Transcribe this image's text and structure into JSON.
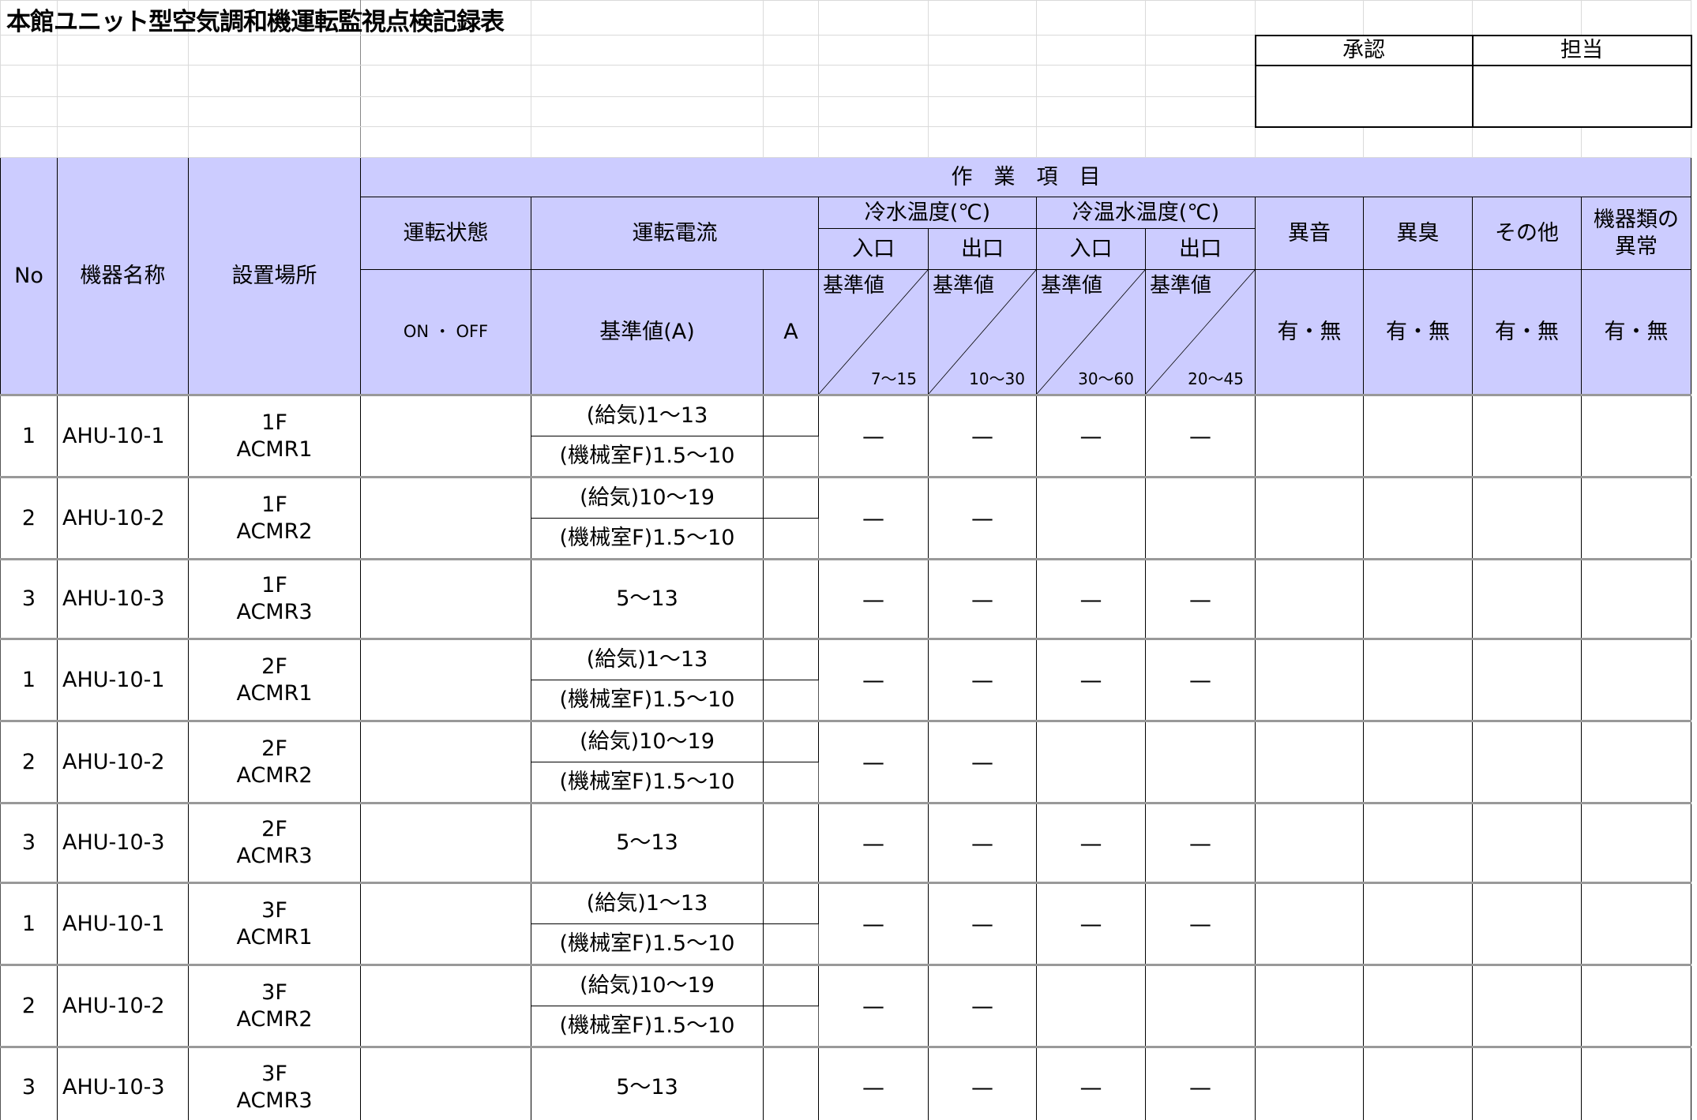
{
  "title": "本館ユニット型空気調和機運転監視点検記録表",
  "approval": {
    "approve_label": "承認",
    "charge_label": "担当"
  },
  "header": {
    "no": "No",
    "name": "機器名称",
    "location": "設置場所",
    "work_items": "作　業　項　目",
    "run_state": "運転状態",
    "run_current": "運転電流",
    "cold_water_temp": "冷水温度(℃)",
    "hot_cold_water_temp": "冷温水温度(℃)",
    "inlet": "入口",
    "outlet": "出口",
    "noise": "異音",
    "odor": "異臭",
    "other": "その他",
    "equipment_abnormal": "機器類の異常",
    "on_off": "ON ・ OFF",
    "std_a": "基準値(A)",
    "a": "A",
    "std": "基準値",
    "ranges": [
      "7～15",
      "10～30",
      "30～60",
      "20～45"
    ],
    "yes_no": "有・無"
  },
  "rows": [
    {
      "no": "1",
      "name": "AHU-10-1",
      "loc1": "1F",
      "loc2": "ACMR1",
      "std": [
        "(給気)1～13",
        "(機械室F)1.5～10"
      ],
      "temps": [
        "—",
        "—",
        "—",
        "—"
      ]
    },
    {
      "no": "2",
      "name": "AHU-10-2",
      "loc1": "1F",
      "loc2": "ACMR2",
      "std": [
        "(給気)10～19",
        "(機械室F)1.5～10"
      ],
      "temps": [
        "—",
        "—",
        "",
        ""
      ]
    },
    {
      "no": "3",
      "name": "AHU-10-3",
      "loc1": "1F",
      "loc2": "ACMR3",
      "std": [
        "5～13"
      ],
      "temps": [
        "—",
        "—",
        "—",
        "—"
      ]
    },
    {
      "no": "1",
      "name": "AHU-10-1",
      "loc1": "2F",
      "loc2": "ACMR1",
      "std": [
        "(給気)1～13",
        "(機械室F)1.5～10"
      ],
      "temps": [
        "—",
        "—",
        "—",
        "—"
      ]
    },
    {
      "no": "2",
      "name": "AHU-10-2",
      "loc1": "2F",
      "loc2": "ACMR2",
      "std": [
        "(給気)10～19",
        "(機械室F)1.5～10"
      ],
      "temps": [
        "—",
        "—",
        "",
        ""
      ]
    },
    {
      "no": "3",
      "name": "AHU-10-3",
      "loc1": "2F",
      "loc2": "ACMR3",
      "std": [
        "5～13"
      ],
      "temps": [
        "—",
        "—",
        "—",
        "—"
      ]
    },
    {
      "no": "1",
      "name": "AHU-10-1",
      "loc1": "3F",
      "loc2": "ACMR1",
      "std": [
        "(給気)1～13",
        "(機械室F)1.5～10"
      ],
      "temps": [
        "—",
        "—",
        "—",
        "—"
      ]
    },
    {
      "no": "2",
      "name": "AHU-10-2",
      "loc1": "3F",
      "loc2": "ACMR2",
      "std": [
        "(給気)10～19",
        "(機械室F)1.5～10"
      ],
      "temps": [
        "—",
        "—",
        "",
        ""
      ]
    },
    {
      "no": "3",
      "name": "AHU-10-3",
      "loc1": "3F",
      "loc2": "ACMR3",
      "std": [
        "5～13"
      ],
      "temps": [
        "—",
        "—",
        "—",
        "—"
      ]
    }
  ],
  "colors": {
    "header_bg": "#ccccff",
    "grid": "#dadada"
  }
}
